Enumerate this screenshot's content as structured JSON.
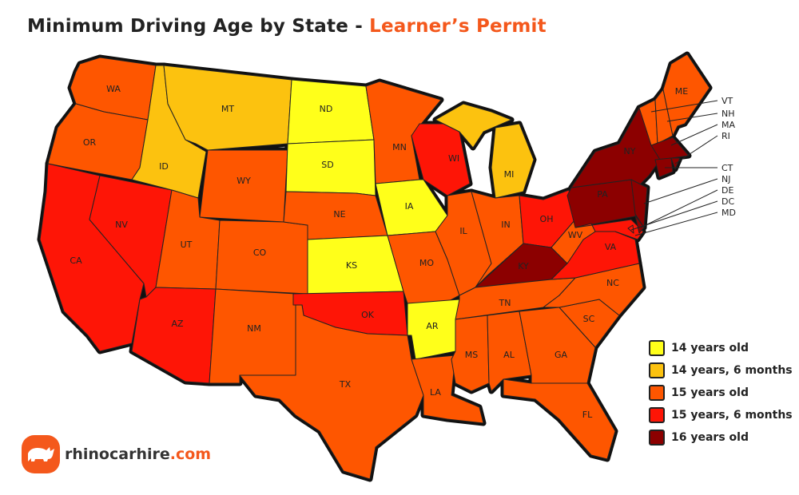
{
  "title": {
    "main": "Minimum Driving Age by State - ",
    "accent": "Learner’s Permit"
  },
  "legend": [
    {
      "label": "14 years old",
      "color": "#ffff1a"
    },
    {
      "label": "14 years, 6 months",
      "color": "#fcc20f"
    },
    {
      "label": "15 years old",
      "color": "#fe5600"
    },
    {
      "label": "15 years, 6 months",
      "color": "#fe1506"
    },
    {
      "label": "16 years old",
      "color": "#8c0000"
    }
  ],
  "states": {
    "WA": 2,
    "OR": 2,
    "CA": 3,
    "NV": 3,
    "ID": 1,
    "MT": 1,
    "WY": 2,
    "UT": 2,
    "CO": 2,
    "AZ": 3,
    "NM": 2,
    "ND": 0,
    "SD": 0,
    "NE": 2,
    "KS": 0,
    "OK": 3,
    "TX": 2,
    "MN": 2,
    "IA": 0,
    "MO": 2,
    "AR": 0,
    "LA": 2,
    "WI": 3,
    "IL": 2,
    "MI": 1,
    "IN": 2,
    "OH": 3,
    "KY": 4,
    "TN": 2,
    "MS": 2,
    "AL": 2,
    "GA": 2,
    "FL": 2,
    "SC": 2,
    "NC": 2,
    "VA": 3,
    "WV": 2,
    "PA": 4,
    "NY": 4,
    "MD": 3,
    "NJ": 4,
    "DE": 4,
    "DC": 3,
    "VT": 2,
    "NH": 2,
    "ME": 2,
    "MA": 4,
    "CT": 4,
    "RI": 4
  },
  "callouts": [
    "VT",
    "NH",
    "MA",
    "RI",
    "CT",
    "NJ",
    "DE",
    "DC",
    "MD"
  ],
  "logo": {
    "name": "rhinocarhire",
    "domain": ".com"
  }
}
